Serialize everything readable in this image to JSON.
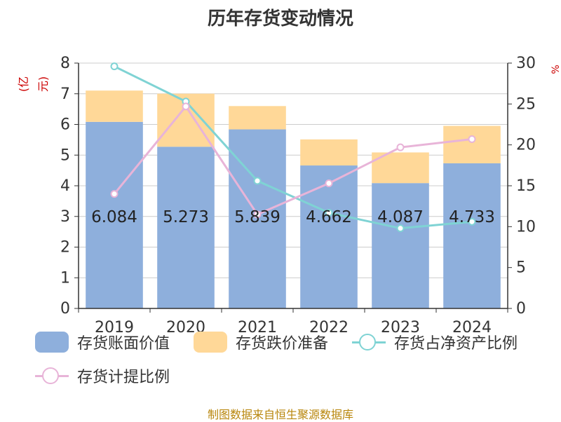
{
  "title": "历年存货变动情况",
  "left_axis_unit": "(亿元)",
  "right_axis_unit": "%",
  "source": "制图数据来自恒生聚源数据库",
  "colors": {
    "book_value": "#8eafdc",
    "impairment": "#ffd898",
    "net_asset_ratio": "#7fd3d4",
    "provision_ratio": "#e8b4d8"
  },
  "legend": [
    {
      "label": "存货账面价值",
      "kind": "rect",
      "color": "#8eafdc"
    },
    {
      "label": "存货跌价准备",
      "kind": "rect",
      "color": "#ffd898"
    },
    {
      "label": "存货占净资产比例",
      "kind": "line",
      "color": "#7fd3d4"
    },
    {
      "label": "存货计提比例",
      "kind": "line",
      "color": "#e8b4d8"
    }
  ],
  "chart_data": {
    "type": "bar",
    "title": "历年存货变动情况",
    "categories": [
      "2019",
      "2020",
      "2021",
      "2022",
      "2023",
      "2024"
    ],
    "left_axis": {
      "label": "(亿元)",
      "ylim": [
        0,
        8
      ],
      "ticks": [
        0,
        1,
        2,
        3,
        4,
        5,
        6,
        7,
        8
      ]
    },
    "right_axis": {
      "ylim": [
        0,
        30
      ],
      "ticks": [
        0,
        5,
        10,
        15,
        20,
        25,
        30
      ]
    },
    "grid": true,
    "legend_position": "bottom",
    "stacked_bars": [
      {
        "name": "存货账面价值",
        "values": [
          6.084,
          5.273,
          5.839,
          4.662,
          4.087,
          4.733
        ],
        "labels": [
          "6.084",
          "5.273",
          "5.839",
          "4.662",
          "4.087",
          "4.733"
        ]
      },
      {
        "name": "存货跌价准备",
        "values": [
          1.02,
          1.73,
          0.76,
          0.85,
          1.0,
          1.22
        ]
      }
    ],
    "lines": [
      {
        "name": "存货占净资产比例",
        "axis": "right",
        "values": [
          29.6,
          25.3,
          15.6,
          11.7,
          9.8,
          10.6
        ]
      },
      {
        "name": "存货计提比例",
        "axis": "right",
        "values": [
          14.0,
          24.7,
          11.5,
          15.3,
          19.7,
          20.7
        ]
      }
    ]
  }
}
